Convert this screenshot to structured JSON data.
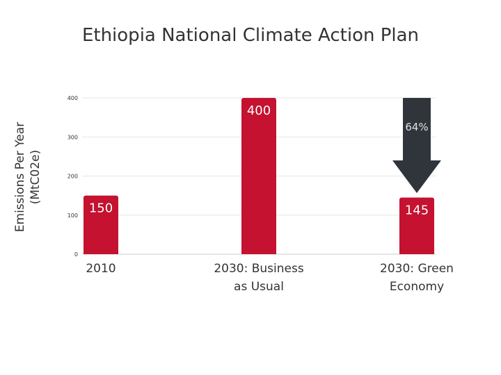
{
  "chart_data": {
    "type": "bar",
    "title": "Ethiopia National Climate Action Plan",
    "ylabel": [
      "Emissions Per Year",
      "(MtC02e)"
    ],
    "xlabel": "",
    "categories": [
      [
        "2010"
      ],
      [
        "2030: Business",
        "as Usual"
      ],
      [
        "2030: Green",
        "Economy"
      ]
    ],
    "values": [
      150,
      400,
      145
    ],
    "data_labels": [
      "150",
      "400",
      "145"
    ],
    "ylim": [
      0,
      400
    ],
    "yticks": [
      0,
      100,
      200,
      300,
      400
    ],
    "grid": true,
    "annotation": {
      "text": "64%",
      "type": "down-arrow",
      "category_index": 2,
      "from": 400,
      "to": 160
    },
    "colors": {
      "bar": "#c41230",
      "arrow": "#30353b",
      "grid": "#e6e6e6",
      "text": "#333333"
    }
  }
}
